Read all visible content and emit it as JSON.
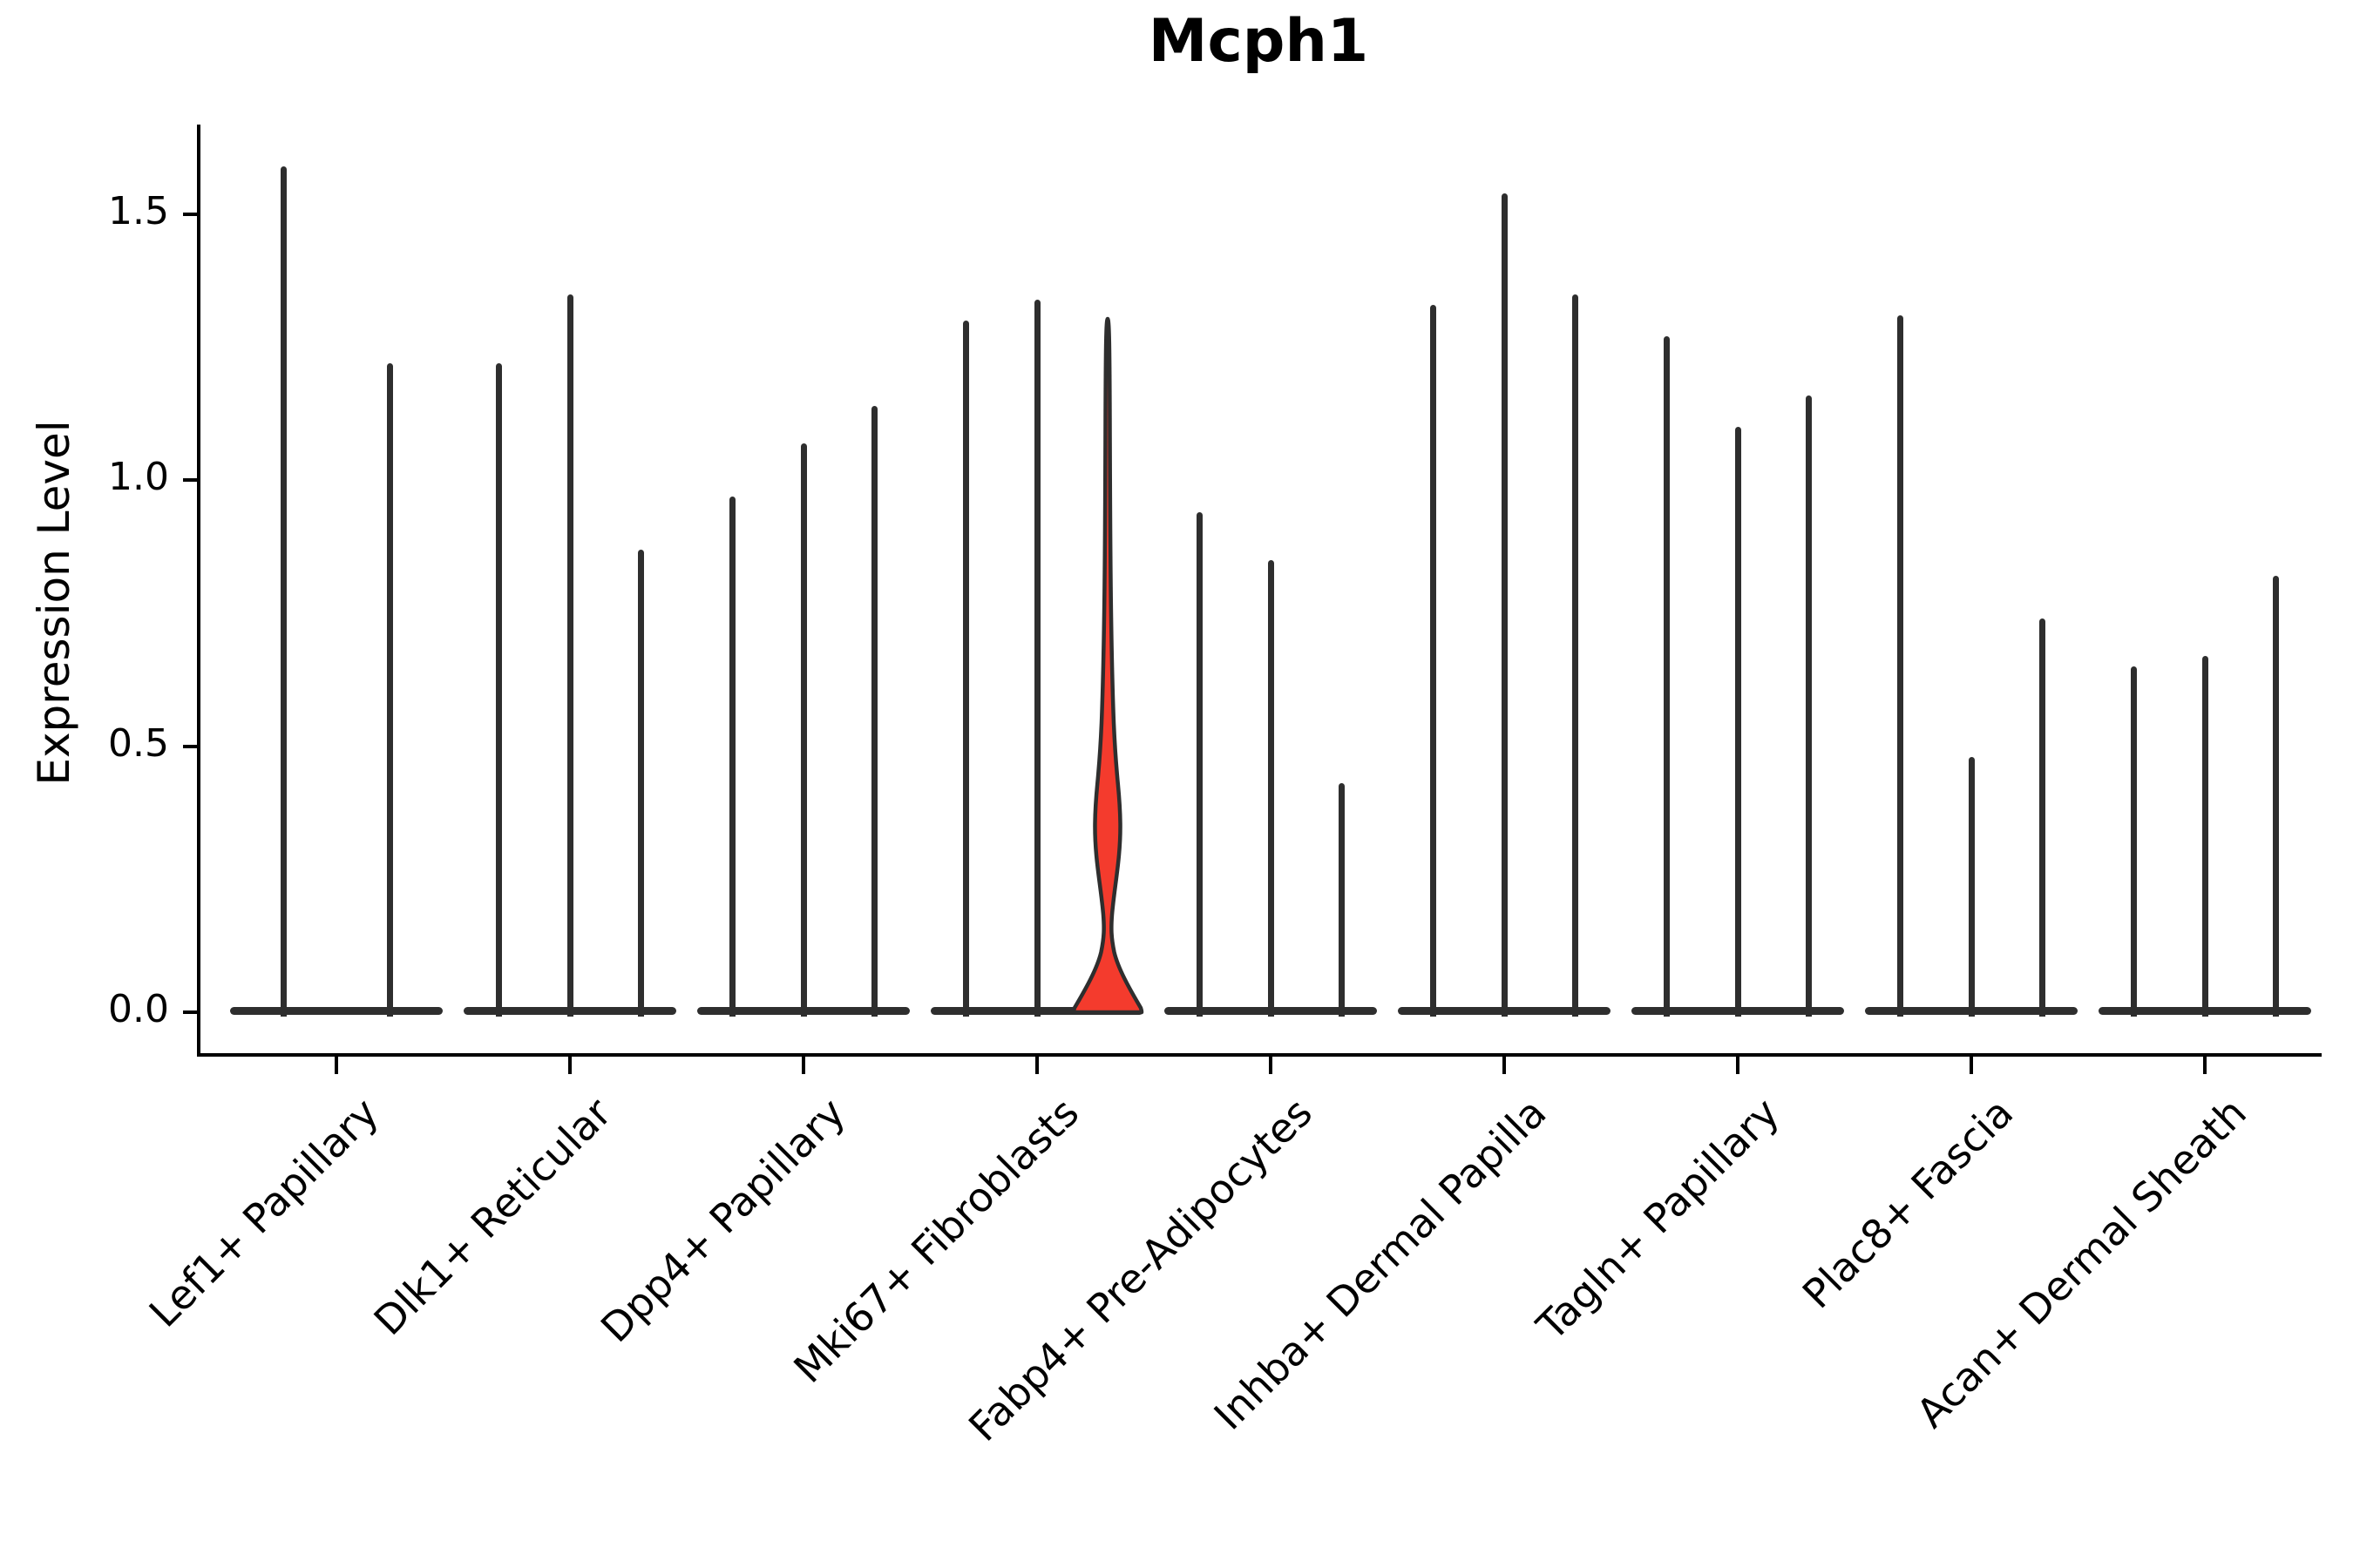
{
  "title": "Mcph1",
  "ylabel": "Expression Level",
  "chart_data": {
    "type": "violin",
    "title": "Mcph1",
    "xlabel": "",
    "ylabel": "Expression Level",
    "yticks": [
      "0.0",
      "0.5",
      "1.0",
      "1.5"
    ],
    "ylim": [
      0,
      1.67
    ],
    "legend": "none",
    "grid": false,
    "violin_color": "#2e2e2e",
    "highlight_color": "#f43b2d",
    "description": "Each violin has density concentrated at expression 0 (wide flat base) with a thin spike up to its maximum expression value; one violin (3rd of Mki67+ Fibroblasts) is highlighted red with a visible density bulge.",
    "groups": [
      {
        "label": "Lef1+ Papillary",
        "violins": [
          {
            "max": 1.59
          },
          {
            "max": 1.22
          }
        ]
      },
      {
        "label": "Dlk1+ Reticular",
        "violins": [
          {
            "max": 1.22
          },
          {
            "max": 1.35
          },
          {
            "max": 0.87
          }
        ]
      },
      {
        "label": "Dpp4+ Papillary",
        "violins": [
          {
            "max": 0.97
          },
          {
            "max": 1.07
          },
          {
            "max": 1.14
          }
        ]
      },
      {
        "label": "Mki67+ Fibroblasts",
        "violins": [
          {
            "max": 1.3
          },
          {
            "max": 1.34
          },
          {
            "max": 1.3,
            "highlight": true,
            "bulge_top": 0.53,
            "bulge_peak": 0.36,
            "bulge_bottom": 0.2
          }
        ]
      },
      {
        "label": "Fabp4+ Pre-Adipocytes",
        "violins": [
          {
            "max": 0.94
          },
          {
            "max": 0.85
          },
          {
            "max": 0.43
          }
        ]
      },
      {
        "label": "Inhba+ Dermal Papilla",
        "violins": [
          {
            "max": 1.33
          },
          {
            "max": 1.54
          },
          {
            "max": 1.35
          }
        ]
      },
      {
        "label": "Tagln+ Papillary",
        "violins": [
          {
            "max": 1.27
          },
          {
            "max": 1.1
          },
          {
            "max": 1.16
          }
        ]
      },
      {
        "label": "Plac8+ Fascia",
        "violins": [
          {
            "max": 1.31
          },
          {
            "max": 0.48
          },
          {
            "max": 0.74
          }
        ]
      },
      {
        "label": "Acan+ Dermal Sheath",
        "violins": [
          {
            "max": 0.65
          },
          {
            "max": 0.67
          },
          {
            "max": 0.82
          }
        ]
      }
    ]
  }
}
